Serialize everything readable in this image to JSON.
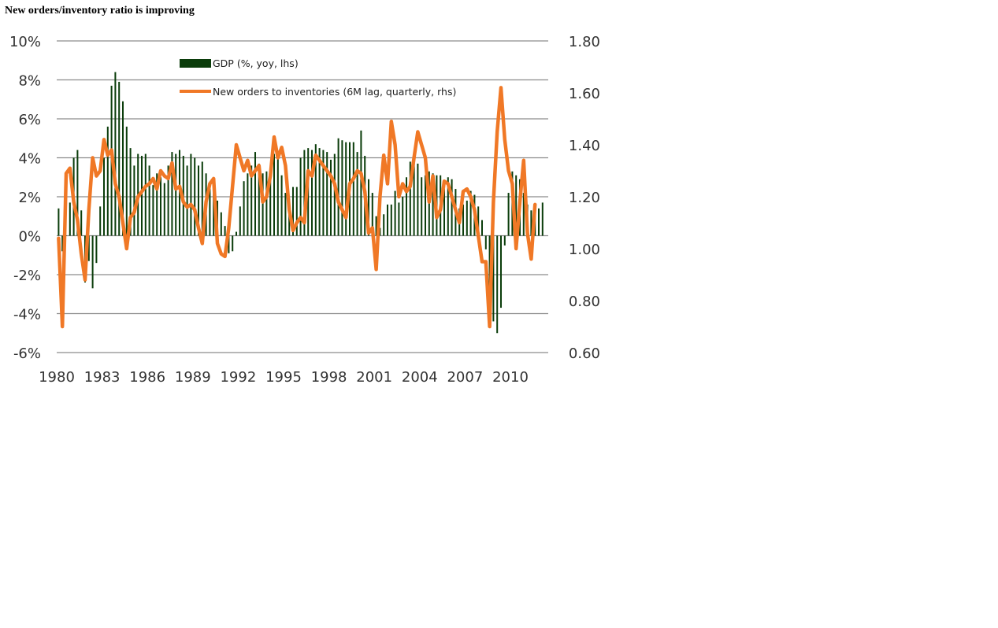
{
  "chart_data": {
    "type": "bar+line",
    "title": "New orders/inventory ratio is improving",
    "left_axis": {
      "label": "GDP (%, yoy, lhs)",
      "min": -6,
      "max": 10,
      "ticks": [
        "10%",
        "8%",
        "6%",
        "4%",
        "2%",
        "0%",
        "-2%",
        "-4%",
        "-6%"
      ],
      "tick_values": [
        10,
        8,
        6,
        4,
        2,
        0,
        -2,
        -4,
        -6
      ]
    },
    "right_axis": {
      "label": "New orders to inventories (6M lag, quarterly, rhs)",
      "min": 0.6,
      "max": 1.8,
      "ticks": [
        "1.80",
        "1.60",
        "1.40",
        "1.20",
        "1.00",
        "0.80",
        "0.60"
      ],
      "tick_values": [
        1.8,
        1.6,
        1.4,
        1.2,
        1.0,
        0.8,
        0.6
      ]
    },
    "x_axis": {
      "start": 1980.0,
      "end": 2012.5,
      "ticks": [
        "1980",
        "1983",
        "1986",
        "1989",
        "1992",
        "1995",
        "1998",
        "2001",
        "2004",
        "2007",
        "2010"
      ],
      "tick_values": [
        1980,
        1983,
        1986,
        1989,
        1992,
        1995,
        1998,
        2001,
        2004,
        2007,
        2010
      ]
    },
    "grid": true,
    "legend_position": "top-center",
    "series": [
      {
        "name": "GDP (%, yoy, lhs)",
        "kind": "bar",
        "axis": "left",
        "color": "#0b3d0b",
        "x_start": 1980.0,
        "x_step": 0.25,
        "values": [
          1.4,
          -0.8,
          0.0,
          1.7,
          4.0,
          4.4,
          1.3,
          -2.4,
          -1.3,
          -2.7,
          -1.4,
          1.5,
          4.0,
          5.6,
          7.7,
          8.4,
          7.9,
          6.9,
          5.6,
          4.5,
          3.6,
          4.2,
          4.1,
          4.2,
          3.6,
          2.6,
          3.2,
          3.0,
          2.7,
          3.6,
          4.3,
          4.2,
          4.4,
          4.1,
          3.6,
          4.2,
          4.0,
          3.6,
          3.8,
          3.2,
          2.7,
          2.7,
          1.8,
          1.2,
          0.5,
          -0.9,
          -0.8,
          0.2,
          1.5,
          2.8,
          3.2,
          3.6,
          4.3,
          3.7,
          3.2,
          3.3,
          3.5,
          4.2,
          4.1,
          3.1,
          2.2,
          1.9,
          2.5,
          2.5,
          4.0,
          4.4,
          4.5,
          4.4,
          4.7,
          4.5,
          4.4,
          4.3,
          3.9,
          4.2,
          5.0,
          4.9,
          4.8,
          4.8,
          4.8,
          4.3,
          5.4,
          4.1,
          2.9,
          2.2,
          1.0,
          0.4,
          1.1,
          1.6,
          1.6,
          2.3,
          1.7,
          2.0,
          3.0,
          3.8,
          4.3,
          3.7,
          3.0,
          3.1,
          3.3,
          3.2,
          3.1,
          3.1,
          2.7,
          3.0,
          2.9,
          2.4,
          1.4,
          1.6,
          1.8,
          2.3,
          2.1,
          1.5,
          0.8,
          -0.7,
          -3.3,
          -4.4,
          -5.0,
          -3.7,
          -0.5,
          2.2,
          3.3,
          3.1,
          2.9,
          2.2,
          1.6,
          1.3,
          1.2,
          1.4,
          1.7
        ],
        "labels_hidden": true
      },
      {
        "name": "New orders to inventories (6M lag, quarterly, rhs)",
        "kind": "line",
        "axis": "right",
        "color": "#f07826",
        "x_start": 1980.0,
        "x_step": 0.25,
        "values": [
          1.04,
          0.7,
          1.29,
          1.31,
          1.18,
          1.11,
          0.98,
          0.88,
          1.15,
          1.35,
          1.28,
          1.3,
          1.42,
          1.36,
          1.38,
          1.25,
          1.2,
          1.1,
          1.0,
          1.12,
          1.14,
          1.2,
          1.22,
          1.24,
          1.25,
          1.27,
          1.23,
          1.3,
          1.28,
          1.27,
          1.33,
          1.23,
          1.24,
          1.18,
          1.16,
          1.17,
          1.15,
          1.08,
          1.02,
          1.18,
          1.25,
          1.27,
          1.02,
          0.98,
          0.97,
          1.08,
          1.24,
          1.4,
          1.35,
          1.3,
          1.34,
          1.28,
          1.3,
          1.32,
          1.18,
          1.2,
          1.28,
          1.43,
          1.35,
          1.39,
          1.32,
          1.15,
          1.07,
          1.1,
          1.12,
          1.1,
          1.3,
          1.28,
          1.36,
          1.34,
          1.32,
          1.3,
          1.28,
          1.25,
          1.18,
          1.15,
          1.12,
          1.25,
          1.27,
          1.3,
          1.29,
          1.22,
          1.06,
          1.08,
          0.92,
          1.2,
          1.36,
          1.25,
          1.49,
          1.4,
          1.2,
          1.25,
          1.22,
          1.24,
          1.35,
          1.45,
          1.4,
          1.35,
          1.18,
          1.28,
          1.12,
          1.15,
          1.26,
          1.25,
          1.2,
          1.15,
          1.1,
          1.22,
          1.23,
          1.2,
          1.15,
          1.05,
          0.95,
          0.95,
          0.7,
          1.18,
          1.45,
          1.62,
          1.42,
          1.3,
          1.25,
          1.0,
          1.18,
          1.34,
          1.06,
          0.96,
          1.17
        ]
      }
    ]
  }
}
